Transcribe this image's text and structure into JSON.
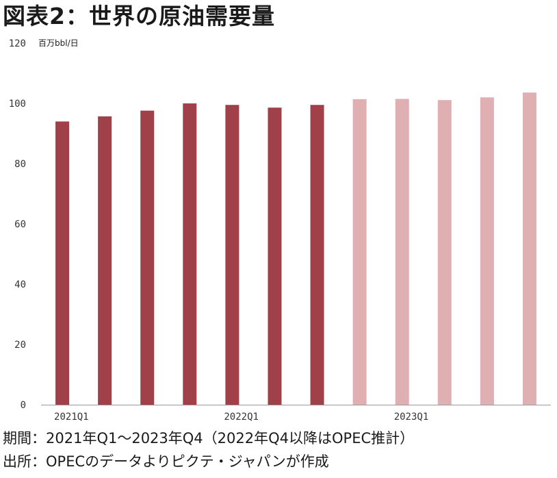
{
  "title": "図表2：世界の原油需要量",
  "unit_label": "百万bbl/日",
  "footer": {
    "period": "期間：2021年Q1～2023年Q4（2022年Q4以降はOPEC推計）",
    "source": "出所：OPECのデータよりピクテ・ジャパンが作成"
  },
  "colors": {
    "actual": "#a0414a",
    "estimate": "#dfafb2",
    "axis": "#999999"
  },
  "chart_data": {
    "type": "bar",
    "title": "図表2：世界の原油需要量",
    "ylabel": "百万bbl/日",
    "ylim": [
      0,
      120
    ],
    "yticks": [
      0,
      20,
      40,
      60,
      80,
      100,
      120
    ],
    "grid": false,
    "categories": [
      "2021Q1",
      "2021Q2",
      "2021Q3",
      "2021Q4",
      "2022Q1",
      "2022Q2",
      "2022Q3",
      "2022Q4",
      "2023Q1",
      "2023Q2",
      "2023Q3",
      "2023Q4"
    ],
    "xtick_labels": [
      "2021Q1",
      "",
      "",
      "",
      "2022Q1",
      "",
      "",
      "",
      "2023Q1",
      "",
      "",
      ""
    ],
    "values": [
      94.0,
      95.7,
      97.6,
      100.0,
      99.5,
      98.6,
      99.5,
      101.4,
      101.5,
      101.1,
      102.0,
      103.6
    ],
    "estimated": [
      false,
      false,
      false,
      false,
      false,
      false,
      false,
      true,
      true,
      true,
      true,
      true
    ]
  }
}
